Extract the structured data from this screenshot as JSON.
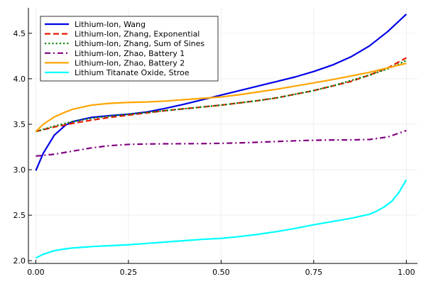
{
  "chart_data": {
    "type": "line",
    "title": "",
    "xlabel": "",
    "ylabel": "",
    "xlim": [
      -0.02,
      1.03
    ],
    "ylim": [
      1.97,
      4.78
    ],
    "grid": true,
    "legend_position": "top-left",
    "x_ticks": [
      {
        "value": 0.0,
        "label": "0.00"
      },
      {
        "value": 0.25,
        "label": "0.25"
      },
      {
        "value": 0.5,
        "label": "0.50"
      },
      {
        "value": 0.75,
        "label": "0.75"
      },
      {
        "value": 1.0,
        "label": "1.00"
      }
    ],
    "y_ticks": [
      {
        "value": 2.0,
        "label": "2.0"
      },
      {
        "value": 2.5,
        "label": "2.5"
      },
      {
        "value": 3.0,
        "label": "3.0"
      },
      {
        "value": 3.5,
        "label": "3.5"
      },
      {
        "value": 4.0,
        "label": "4.0"
      },
      {
        "value": 4.5,
        "label": "4.5"
      }
    ],
    "series": [
      {
        "name": "Lithium-Ion, Wang",
        "color": "#0000e6",
        "dash": "solid",
        "x": [
          0.0,
          0.02,
          0.05,
          0.08,
          0.1,
          0.15,
          0.2,
          0.25,
          0.3,
          0.35,
          0.4,
          0.45,
          0.5,
          0.55,
          0.6,
          0.65,
          0.7,
          0.75,
          0.8,
          0.85,
          0.9,
          0.95,
          1.0
        ],
        "y": [
          2.99,
          3.18,
          3.38,
          3.49,
          3.53,
          3.575,
          3.595,
          3.61,
          3.635,
          3.675,
          3.72,
          3.77,
          3.82,
          3.87,
          3.92,
          3.97,
          4.02,
          4.08,
          4.15,
          4.24,
          4.36,
          4.52,
          4.71
        ]
      },
      {
        "name": "Lithium-Ion, Zhang, Exponential",
        "color": "#e61a00",
        "dash": "dash",
        "x": [
          0.0,
          0.05,
          0.1,
          0.15,
          0.2,
          0.25,
          0.3,
          0.35,
          0.4,
          0.45,
          0.5,
          0.55,
          0.6,
          0.65,
          0.7,
          0.75,
          0.8,
          0.85,
          0.9,
          0.95,
          1.0
        ],
        "y": [
          3.42,
          3.47,
          3.51,
          3.545,
          3.575,
          3.6,
          3.625,
          3.65,
          3.67,
          3.69,
          3.71,
          3.735,
          3.76,
          3.79,
          3.83,
          3.87,
          3.92,
          3.97,
          4.04,
          4.12,
          4.23
        ]
      },
      {
        "name": "Lithium-Ion, Zhang, Sum of Sines",
        "color": "#008000",
        "dash": "dot",
        "x": [
          0.0,
          0.05,
          0.1,
          0.15,
          0.2,
          0.25,
          0.3,
          0.35,
          0.4,
          0.45,
          0.5,
          0.55,
          0.6,
          0.65,
          0.7,
          0.75,
          0.8,
          0.85,
          0.9,
          0.95,
          1.0
        ],
        "y": [
          3.42,
          3.48,
          3.53,
          3.565,
          3.59,
          3.61,
          3.63,
          3.65,
          3.67,
          3.69,
          3.71,
          3.735,
          3.76,
          3.79,
          3.83,
          3.87,
          3.92,
          3.98,
          4.04,
          4.11,
          4.2
        ]
      },
      {
        "name": "Lithium-Ion, Zhao, Battery 1",
        "color": "#800080",
        "dash": "dashdot",
        "x": [
          0.0,
          0.05,
          0.1,
          0.15,
          0.2,
          0.25,
          0.3,
          0.35,
          0.4,
          0.45,
          0.5,
          0.55,
          0.6,
          0.65,
          0.7,
          0.75,
          0.8,
          0.85,
          0.9,
          0.95,
          1.0
        ],
        "y": [
          3.15,
          3.17,
          3.205,
          3.24,
          3.265,
          3.278,
          3.283,
          3.285,
          3.286,
          3.287,
          3.29,
          3.295,
          3.302,
          3.31,
          3.318,
          3.324,
          3.327,
          3.328,
          3.332,
          3.36,
          3.43
        ]
      },
      {
        "name": "Lithium-Ion, Zhao, Battery 2",
        "color": "#ffa500",
        "dash": "solid",
        "x": [
          0.0,
          0.02,
          0.05,
          0.08,
          0.1,
          0.15,
          0.2,
          0.25,
          0.3,
          0.35,
          0.4,
          0.45,
          0.5,
          0.55,
          0.6,
          0.65,
          0.7,
          0.75,
          0.8,
          0.85,
          0.9,
          0.95,
          1.0
        ],
        "y": [
          3.42,
          3.5,
          3.58,
          3.635,
          3.665,
          3.71,
          3.73,
          3.74,
          3.745,
          3.755,
          3.77,
          3.785,
          3.8,
          3.825,
          3.855,
          3.885,
          3.92,
          3.955,
          3.99,
          4.03,
          4.07,
          4.12,
          4.17
        ]
      },
      {
        "name": "Lithium Titanate Oxide, Stroe",
        "color": "#00ffff",
        "dash": "solid",
        "x": [
          0.0,
          0.02,
          0.05,
          0.08,
          0.1,
          0.15,
          0.2,
          0.25,
          0.3,
          0.35,
          0.4,
          0.45,
          0.5,
          0.55,
          0.6,
          0.65,
          0.7,
          0.75,
          0.8,
          0.85,
          0.9,
          0.92,
          0.94,
          0.96,
          0.98,
          1.0
        ],
        "y": [
          2.03,
          2.07,
          2.11,
          2.13,
          2.14,
          2.155,
          2.165,
          2.175,
          2.19,
          2.205,
          2.22,
          2.235,
          2.245,
          2.265,
          2.29,
          2.32,
          2.355,
          2.395,
          2.43,
          2.465,
          2.51,
          2.545,
          2.59,
          2.65,
          2.75,
          2.89
        ]
      }
    ]
  }
}
